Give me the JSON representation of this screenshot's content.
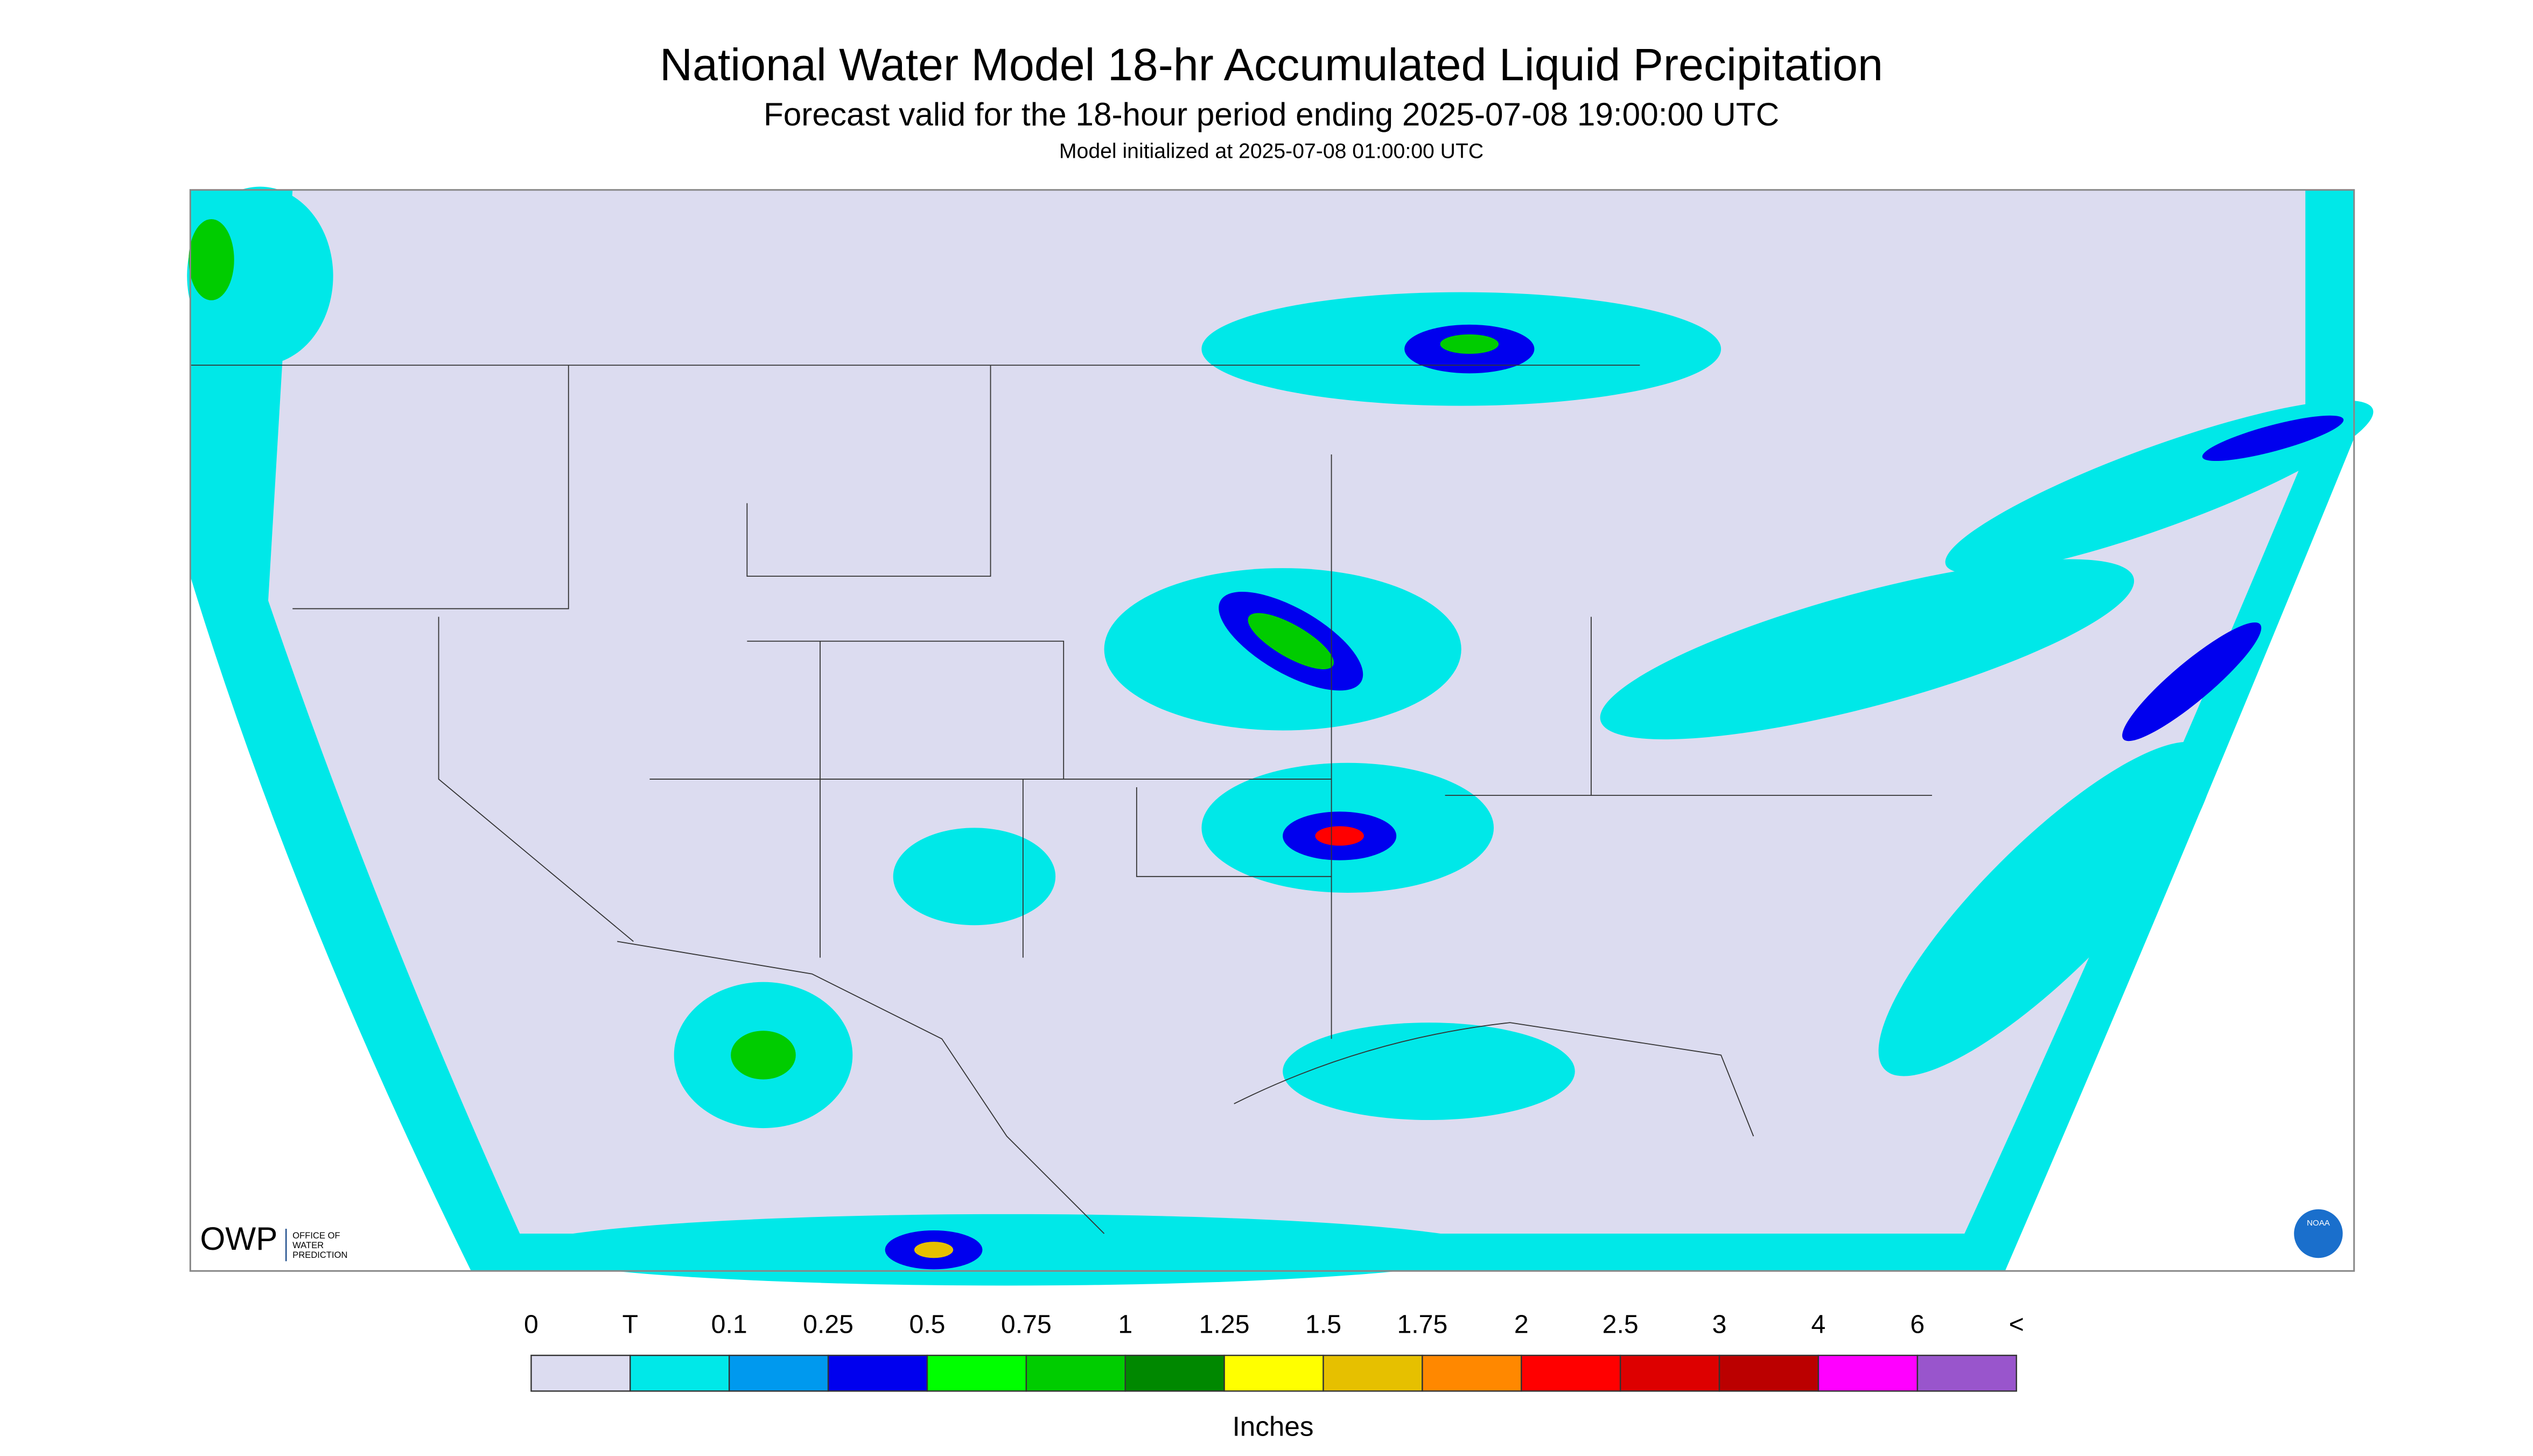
{
  "header": {
    "title": "National Water Model 18-hr Accumulated Liquid Precipitation",
    "subtitle": "Forecast valid for the 18-hour period ending 2025-07-08 19:00:00 UTC",
    "init": "Model initialized at 2025-07-08 01:00:00 UTC"
  },
  "logos": {
    "owp": "OWP",
    "owp_line1": "OFFICE OF",
    "owp_line2": "WATER",
    "owp_line3": "PREDICTION",
    "noaa": "NOAA"
  },
  "legend": {
    "labels": [
      "0",
      "T",
      "0.1",
      "0.25",
      "0.5",
      "0.75",
      "1",
      "1.25",
      "1.5",
      "1.75",
      "2",
      "2.5",
      "3",
      "4",
      "6",
      "<"
    ],
    "colors": [
      "#dcdcf0",
      "#00e8e8",
      "#0099ee",
      "#0000ee",
      "#00ff00",
      "#00cc00",
      "#008800",
      "#ffff00",
      "#e6c000",
      "#ff8800",
      "#ff0000",
      "#dd0000",
      "#bb0000",
      "#ff00ff",
      "#9955cc"
    ],
    "unit": "Inches"
  }
}
